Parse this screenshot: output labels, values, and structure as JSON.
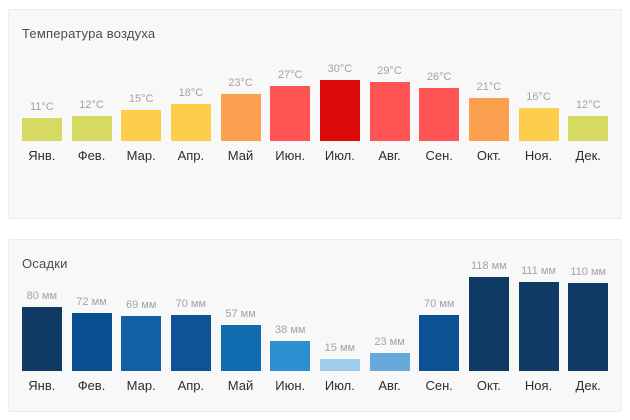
{
  "chart_data": [
    {
      "type": "bar",
      "title": "Температура воздуха",
      "categories": [
        "Янв.",
        "Фев.",
        "Мар.",
        "Апр.",
        "Май",
        "Июн.",
        "Июл.",
        "Авг.",
        "Сен.",
        "Окт.",
        "Ноя.",
        "Дек."
      ],
      "values": [
        11,
        12,
        15,
        18,
        23,
        27,
        30,
        29,
        26,
        21,
        16,
        12
      ],
      "value_labels": [
        "11°C",
        "12°C",
        "15°C",
        "18°C",
        "23°C",
        "27°C",
        "30°C",
        "29°C",
        "26°C",
        "21°C",
        "16°C",
        "12°C"
      ],
      "unit": "°C",
      "ylim": [
        0,
        30
      ],
      "grid": false,
      "legend": false,
      "bar_colors": [
        "#d6da63",
        "#d6da63",
        "#fdce4b",
        "#fdce4b",
        "#faa04e",
        "#fd5353",
        "#de0909",
        "#fd5353",
        "#fd5353",
        "#faa04e",
        "#fdce4b",
        "#d6da63"
      ],
      "value_label_color": "#a3a3a3"
    },
    {
      "type": "bar",
      "title": "Осадки",
      "categories": [
        "Янв.",
        "Фев.",
        "Мар.",
        "Апр.",
        "Май",
        "Июн.",
        "Июл.",
        "Авг.",
        "Сен.",
        "Окт.",
        "Ноя.",
        "Дек."
      ],
      "values": [
        80,
        72,
        69,
        70,
        57,
        38,
        15,
        23,
        70,
        118,
        111,
        110
      ],
      "value_labels": [
        "80 мм",
        "72 мм",
        "69 мм",
        "70 мм",
        "57 мм",
        "38 мм",
        "15 мм",
        "23 мм",
        "70 мм",
        "118 мм",
        "111 мм",
        "110 мм"
      ],
      "unit": "мм",
      "ylim": [
        0,
        118
      ],
      "grid": false,
      "legend": false,
      "bar_colors": [
        "#0e3a63",
        "#0a5091",
        "#1160a3",
        "#0c5495",
        "#0f6cae",
        "#2e8fd0",
        "#9fcdec",
        "#66a9da",
        "#0b5193",
        "#0e3a63",
        "#0e3a63",
        "#0e3a63"
      ],
      "value_label_color": "#a3a3a3"
    }
  ]
}
